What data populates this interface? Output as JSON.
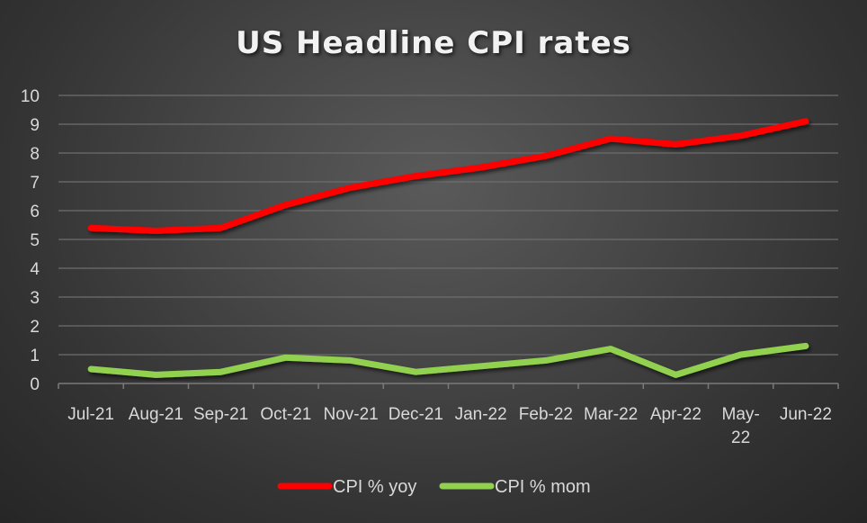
{
  "chart_data": {
    "type": "line",
    "title": "US Headline CPI rates",
    "xlabel": "",
    "ylabel": "",
    "categories": [
      "Jul-21",
      "Aug-21",
      "Sep-21",
      "Oct-21",
      "Nov-21",
      "Dec-21",
      "Jan-22",
      "Feb-22",
      "Mar-22",
      "Apr-22",
      "May-22",
      "Jun-22"
    ],
    "series": [
      {
        "name": "CPI % yoy",
        "color": "#ff0000",
        "values": [
          5.4,
          5.3,
          5.4,
          6.2,
          6.8,
          7.2,
          7.5,
          7.9,
          8.5,
          8.3,
          8.6,
          9.1
        ]
      },
      {
        "name": "CPI % mom",
        "color": "#92d050",
        "values": [
          0.5,
          0.3,
          0.4,
          0.9,
          0.8,
          0.4,
          0.6,
          0.8,
          1.2,
          0.3,
          1.0,
          1.3
        ]
      }
    ],
    "ylim": [
      0,
      10
    ],
    "yticks": [
      0,
      1,
      2,
      3,
      4,
      5,
      6,
      7,
      8,
      9,
      10
    ],
    "grid": true,
    "legend_position": "bottom"
  }
}
